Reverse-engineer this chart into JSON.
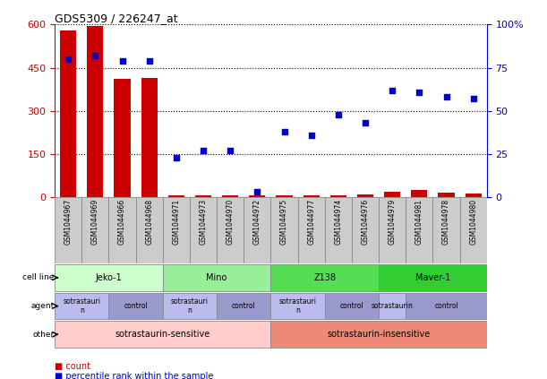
{
  "title": "GDS5309 / 226247_at",
  "samples": [
    "GSM1044967",
    "GSM1044969",
    "GSM1044966",
    "GSM1044968",
    "GSM1044971",
    "GSM1044973",
    "GSM1044970",
    "GSM1044972",
    "GSM1044975",
    "GSM1044977",
    "GSM1044974",
    "GSM1044976",
    "GSM1044979",
    "GSM1044981",
    "GSM1044978",
    "GSM1044980"
  ],
  "counts": [
    580,
    595,
    410,
    415,
    5,
    5,
    5,
    5,
    7,
    7,
    7,
    8,
    20,
    25,
    15,
    13
  ],
  "percentiles": [
    80,
    82,
    79,
    79,
    23,
    27,
    27,
    3,
    38,
    36,
    48,
    43,
    62,
    61,
    58,
    57
  ],
  "ylim_left": [
    0,
    600
  ],
  "ylim_right": [
    0,
    100
  ],
  "yticks_left": [
    0,
    150,
    300,
    450,
    600
  ],
  "yticks_right": [
    0,
    25,
    50,
    75,
    100
  ],
  "bar_color": "#cc0000",
  "dot_color": "#0000cc",
  "bg_color": "#ffffff",
  "grid_color": "#000000",
  "cell_line_groups": [
    {
      "label": "Jeko-1",
      "start": 0,
      "end": 3,
      "color": "#ccffcc"
    },
    {
      "label": "Mino",
      "start": 4,
      "end": 7,
      "color": "#99ee99"
    },
    {
      "label": "Z138",
      "start": 8,
      "end": 11,
      "color": "#55dd55"
    },
    {
      "label": "Maver-1",
      "start": 12,
      "end": 15,
      "color": "#33cc33"
    }
  ],
  "agent_groups": [
    {
      "label": "sotrastauri\nn",
      "start": 0,
      "end": 1,
      "color": "#bbbbee"
    },
    {
      "label": "control",
      "start": 2,
      "end": 3,
      "color": "#9999cc"
    },
    {
      "label": "sotrastauri\nn",
      "start": 4,
      "end": 5,
      "color": "#bbbbee"
    },
    {
      "label": "control",
      "start": 6,
      "end": 7,
      "color": "#9999cc"
    },
    {
      "label": "sotrastauri\nn",
      "start": 8,
      "end": 9,
      "color": "#bbbbee"
    },
    {
      "label": "control",
      "start": 10,
      "end": 11,
      "color": "#9999cc"
    },
    {
      "label": "sotrastaurin",
      "start": 12,
      "end": 12,
      "color": "#bbbbee"
    },
    {
      "label": "control",
      "start": 13,
      "end": 15,
      "color": "#9999cc"
    }
  ],
  "other_groups": [
    {
      "label": "sotrastaurin-sensitive",
      "start": 0,
      "end": 7,
      "color": "#ffcccc"
    },
    {
      "label": "sotrastaurin-insensitive",
      "start": 8,
      "end": 15,
      "color": "#ee8877"
    }
  ],
  "xlabel_bg": "#cccccc",
  "legend": [
    {
      "color": "#cc0000",
      "label": "count"
    },
    {
      "color": "#0000cc",
      "label": "percentile rank within the sample"
    }
  ]
}
